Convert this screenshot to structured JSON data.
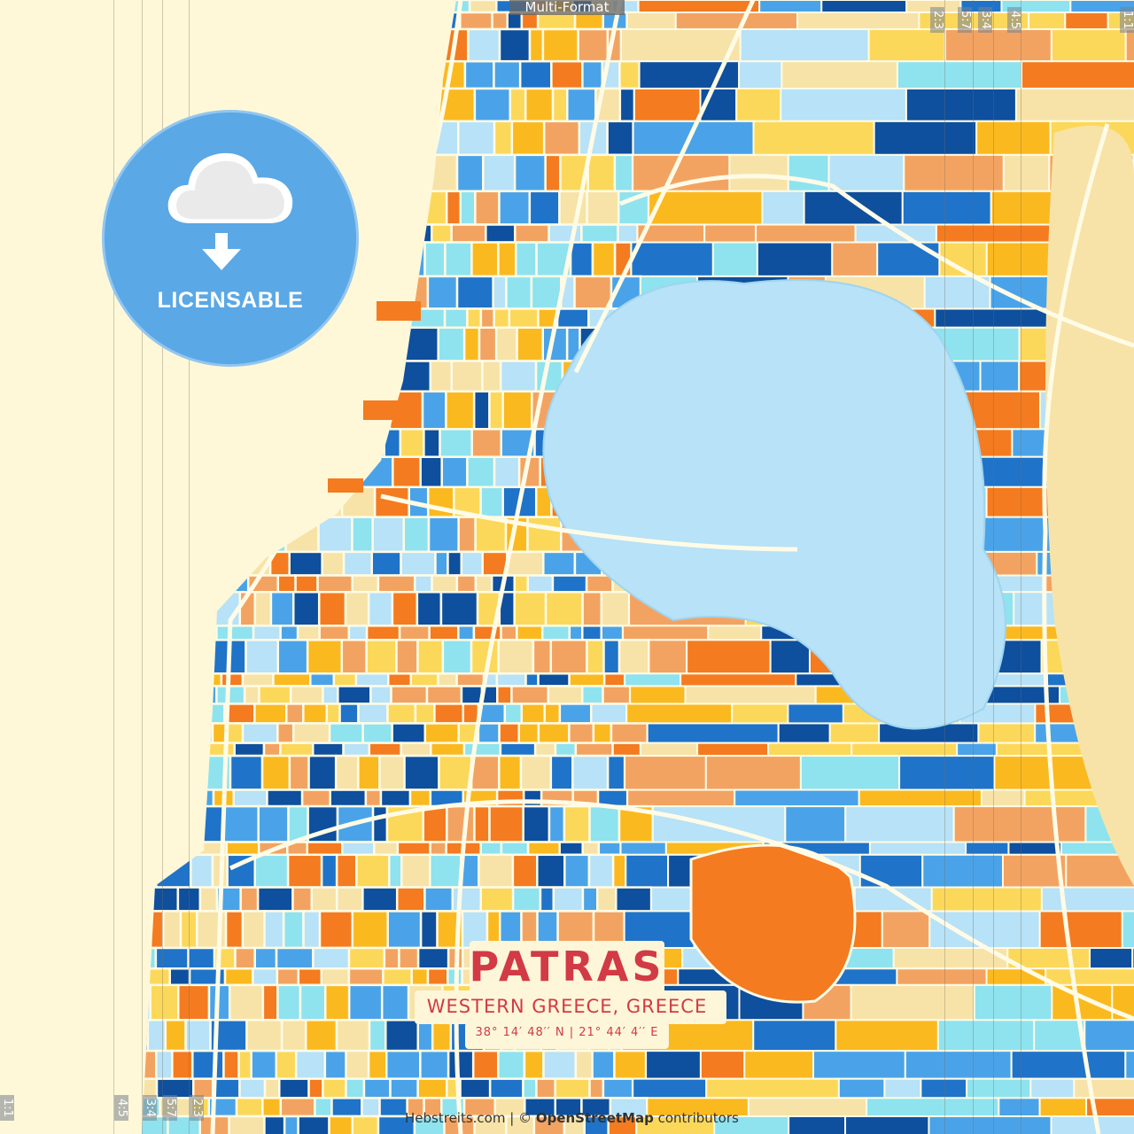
{
  "format_tag": "Multi-Format",
  "badge": {
    "label": "LICENSABLE",
    "icon": "cloud-download-icon",
    "color": "#5aa8e6"
  },
  "title": {
    "city": "PATRAS",
    "region": "WESTERN GREECE, GREECE",
    "coordinates": "38°  14′  48′′ N  |  21°  44′  4′′ E"
  },
  "attribution": {
    "site": "Hebstreits.com",
    "separator": " | © ",
    "osm": "OpenStreetMap",
    "suffix": " contributors"
  },
  "crop_marks": {
    "top": [
      "2:3",
      "5:7",
      "3:4",
      "4:5",
      "1:1"
    ],
    "bottom": [
      "1:1",
      "4:5",
      "3:4",
      "5:7",
      "2:3"
    ]
  },
  "palette": {
    "sea": "#fef8d8",
    "colors": [
      "#f47b20",
      "#fbb920",
      "#fcd85a",
      "#1f73c9",
      "#0e4f9e",
      "#4aa3e8",
      "#8ee3ef",
      "#b7e2f7",
      "#f3a361",
      "#f7e3a8"
    ],
    "hill": "#b7e2f7",
    "road": "#fffbe6",
    "title_red": "#d23a45"
  }
}
